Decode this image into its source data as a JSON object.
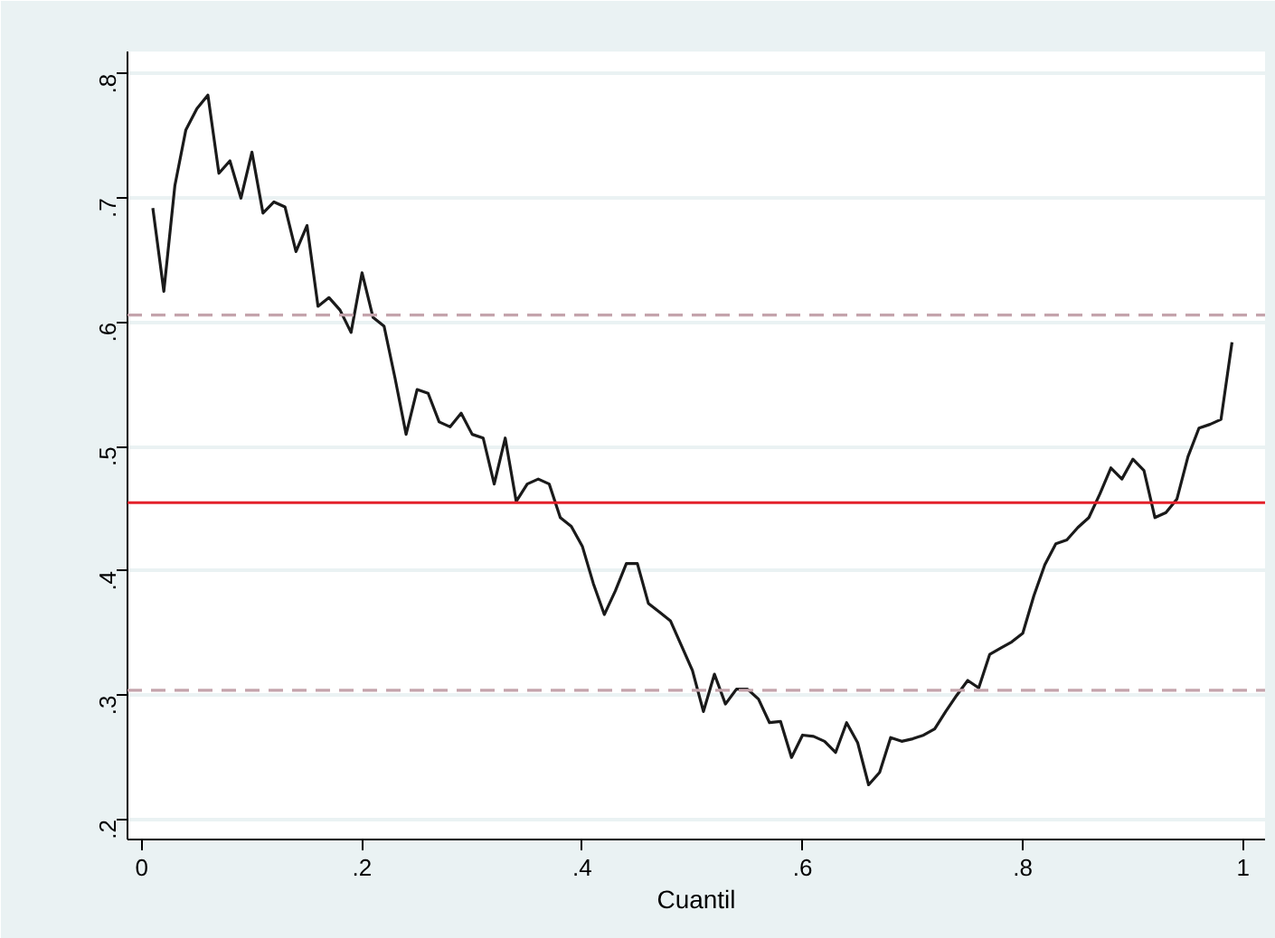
{
  "chart_data": {
    "type": "line",
    "xlabel": "Cuantil",
    "x": [
      0.01,
      0.02,
      0.03,
      0.04,
      0.05,
      0.06,
      0.07,
      0.08,
      0.09,
      0.1,
      0.11,
      0.12,
      0.13,
      0.14,
      0.15,
      0.16,
      0.17,
      0.18,
      0.19,
      0.2,
      0.21,
      0.22,
      0.23,
      0.24,
      0.25,
      0.26,
      0.27,
      0.28,
      0.29,
      0.3,
      0.31,
      0.32,
      0.33,
      0.34,
      0.35,
      0.36,
      0.37,
      0.38,
      0.39,
      0.4,
      0.41,
      0.42,
      0.43,
      0.44,
      0.45,
      0.46,
      0.47,
      0.48,
      0.49,
      0.5,
      0.51,
      0.52,
      0.53,
      0.54,
      0.55,
      0.56,
      0.57,
      0.58,
      0.59,
      0.6,
      0.61,
      0.62,
      0.63,
      0.64,
      0.65,
      0.66,
      0.67,
      0.68,
      0.69,
      0.7,
      0.71,
      0.72,
      0.73,
      0.74,
      0.75,
      0.76,
      0.77,
      0.78,
      0.79,
      0.8,
      0.81,
      0.82,
      0.83,
      0.84,
      0.85,
      0.86,
      0.87,
      0.88,
      0.89,
      0.9,
      0.91,
      0.92,
      0.93,
      0.94,
      0.95,
      0.96,
      0.97,
      0.98,
      0.99
    ],
    "series": [
      {
        "color": "#1a1a1a",
        "values": [
          0.692,
          0.625,
          0.71,
          0.755,
          0.772,
          0.783,
          0.72,
          0.73,
          0.7,
          0.737,
          0.688,
          0.697,
          0.693,
          0.657,
          0.678,
          0.613,
          0.62,
          0.61,
          0.592,
          0.64,
          0.604,
          0.597,
          0.555,
          0.51,
          0.546,
          0.543,
          0.52,
          0.516,
          0.527,
          0.51,
          0.507,
          0.47,
          0.507,
          0.456,
          0.47,
          0.474,
          0.47,
          0.443,
          0.436,
          0.42,
          0.39,
          0.365,
          0.384,
          0.406,
          0.406,
          0.374,
          0.367,
          0.36,
          0.34,
          0.32,
          0.287,
          0.317,
          0.293,
          0.305,
          0.305,
          0.297,
          0.278,
          0.279,
          0.25,
          0.268,
          0.267,
          0.263,
          0.254,
          0.278,
          0.262,
          0.228,
          0.238,
          0.266,
          0.263,
          0.265,
          0.268,
          0.273,
          0.287,
          0.3,
          0.312,
          0.306,
          0.333,
          0.338,
          0.343,
          0.35,
          0.38,
          0.405,
          0.422,
          0.425,
          0.435,
          0.443,
          0.462,
          0.483,
          0.474,
          0.49,
          0.481,
          0.443,
          0.447,
          0.458,
          0.492,
          0.515,
          0.518,
          0.522,
          0.584
        ]
      }
    ],
    "xlim": [
      -0.013,
      1.02
    ],
    "ylim": [
      0.184,
      0.818
    ],
    "xticks": [
      0,
      {
        "value": 0.2,
        "label": ".2"
      },
      {
        "value": 0.4,
        "label": ".4"
      },
      {
        "value": 0.6,
        "label": ".6"
      },
      {
        "value": 0.8,
        "label": ".8"
      },
      1
    ],
    "yticks": [
      {
        "value": 0.2,
        "label": ".2"
      },
      {
        "value": 0.3,
        "label": ".3"
      },
      {
        "value": 0.4,
        "label": ".4"
      },
      {
        "value": 0.5,
        "label": ".5"
      },
      {
        "value": 0.6,
        "label": ".6"
      },
      {
        "value": 0.7,
        "label": ".7"
      },
      {
        "value": 0.8,
        "label": ".8"
      }
    ],
    "ref_lines": [
      {
        "axis": "y",
        "value": 0.455,
        "color": "#e3202a",
        "line_style": "solid"
      },
      {
        "axis": "y",
        "value": 0.606,
        "color": "#c4a4ac",
        "line_style": "dashed"
      },
      {
        "axis": "y",
        "value": 0.304,
        "color": "#c4a4ac",
        "line_style": "dashed"
      }
    ],
    "grid": "y",
    "line_style": "solid",
    "marker": "none"
  }
}
